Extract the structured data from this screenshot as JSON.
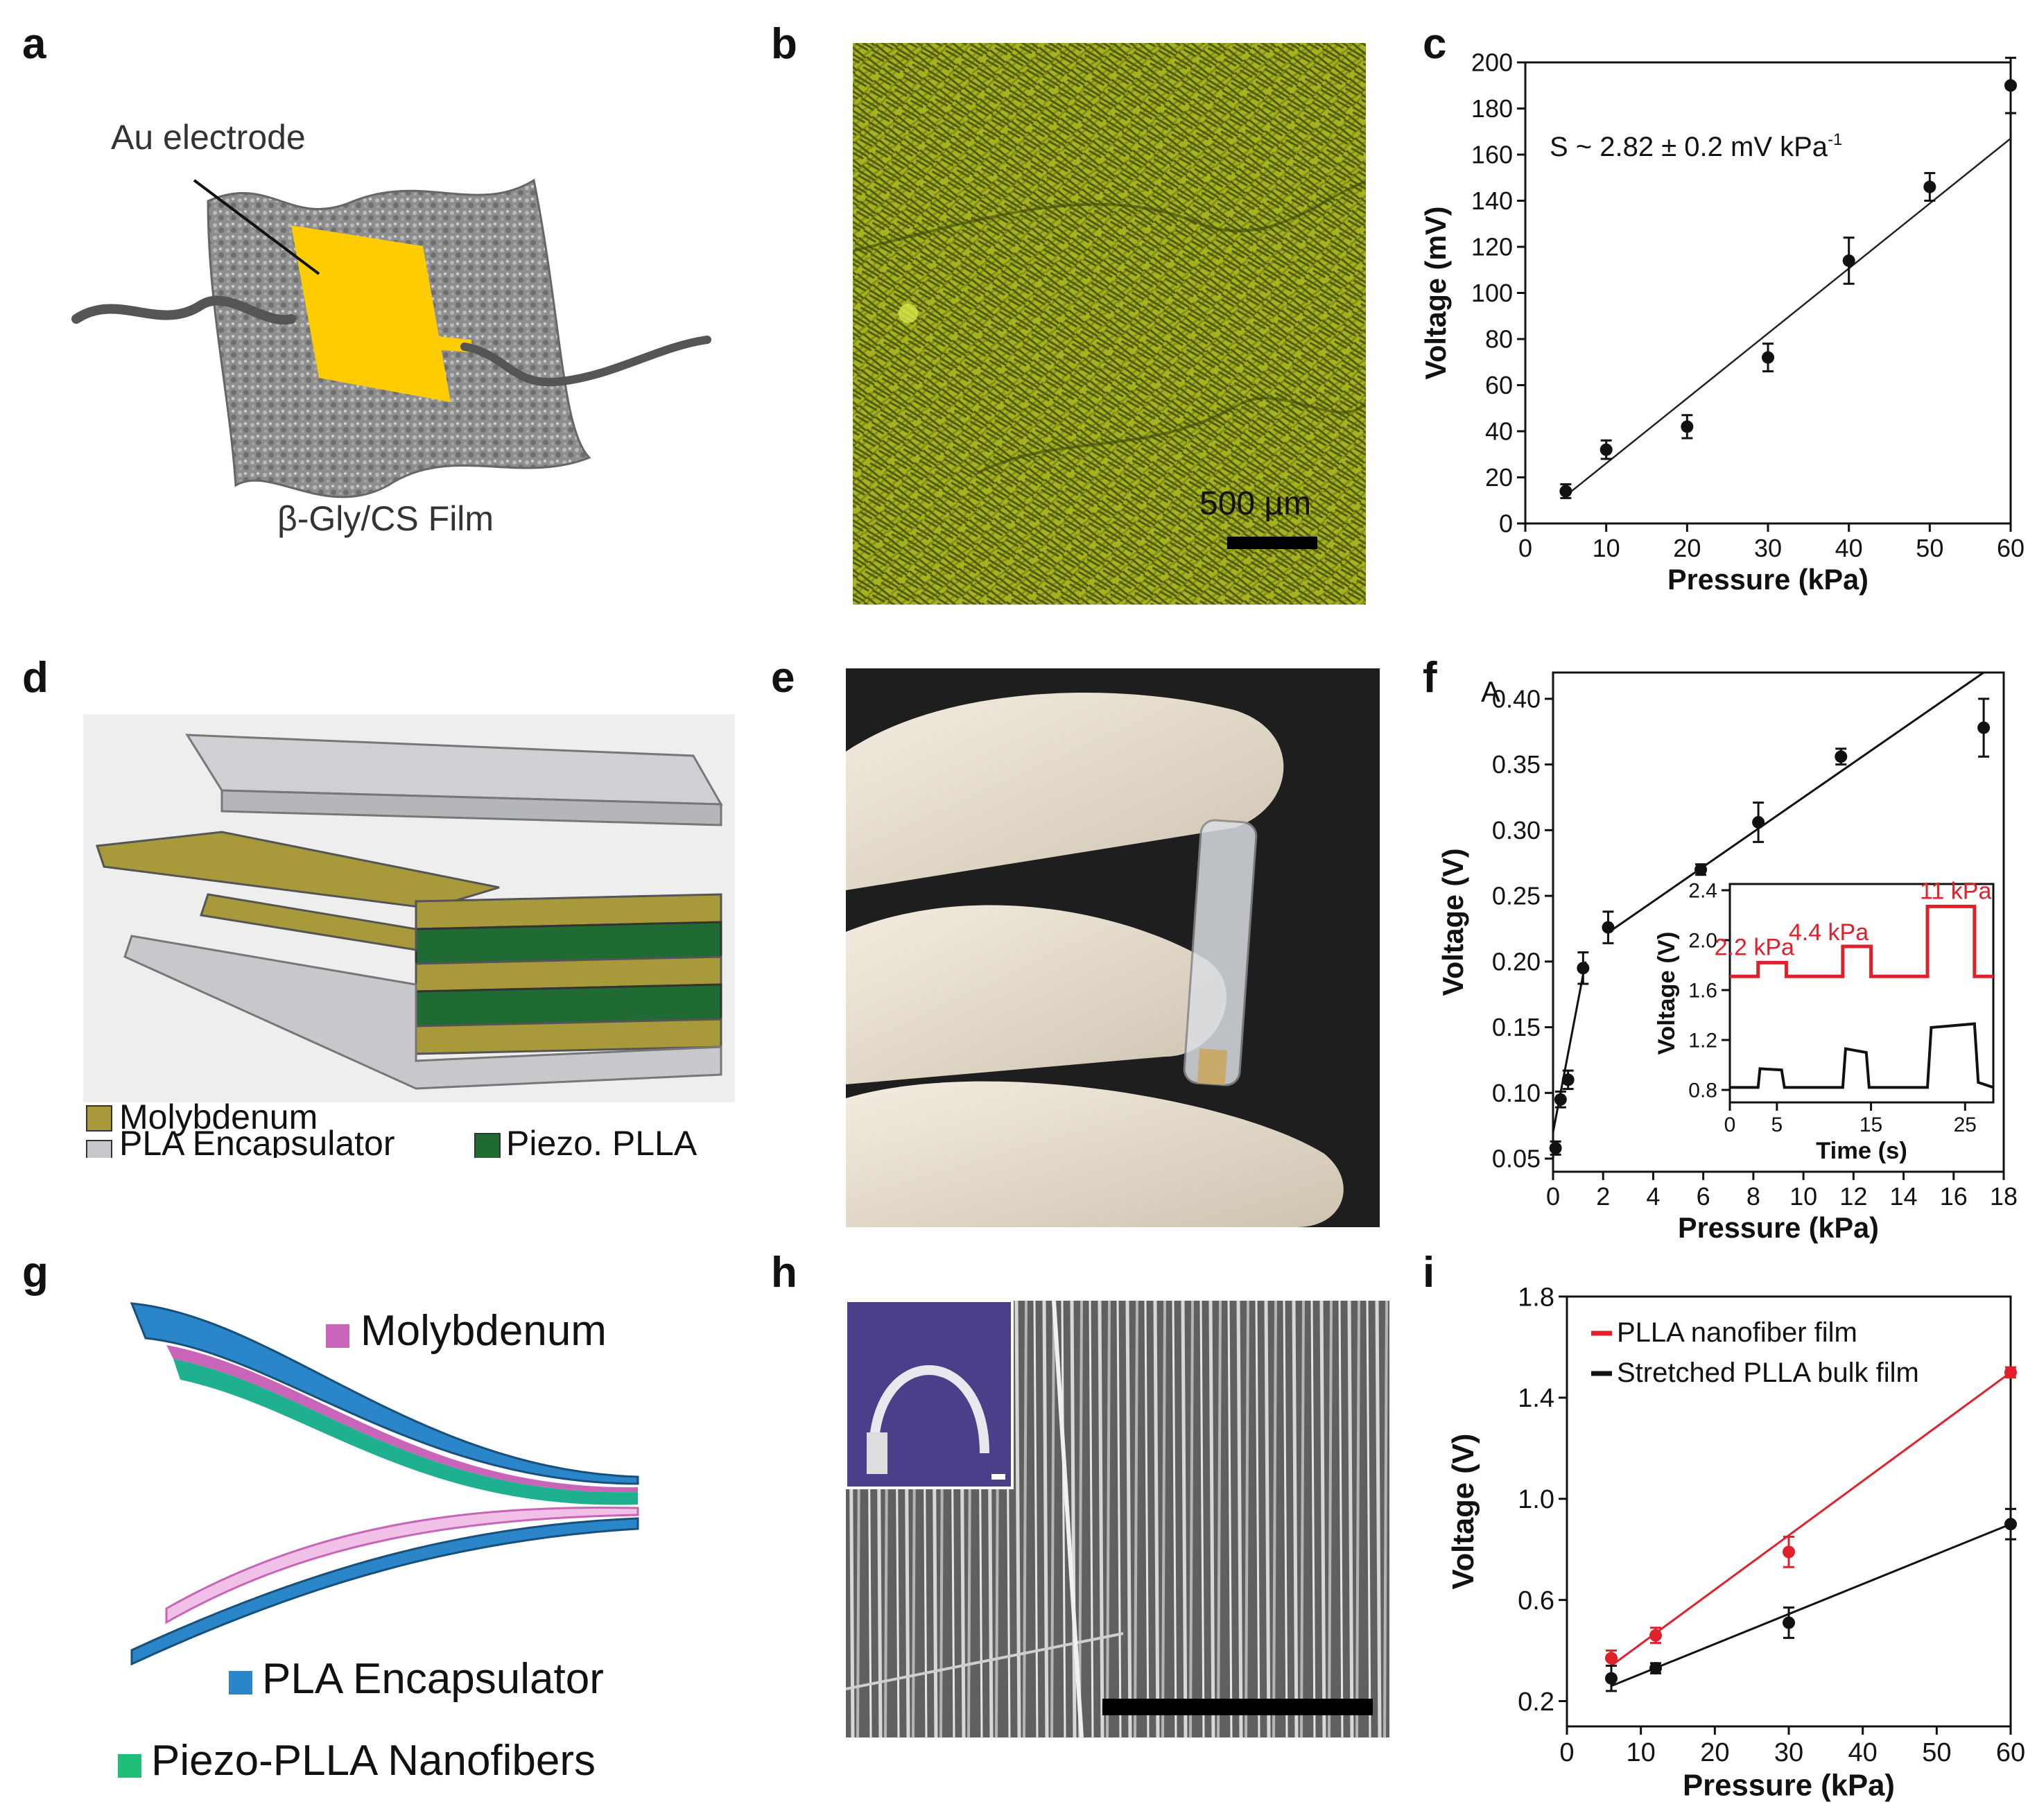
{
  "panel_labels": {
    "a": "a",
    "b": "b",
    "c": "c",
    "d": "d",
    "e": "e",
    "f": "f",
    "g": "g",
    "h": "h",
    "i": "i"
  },
  "panel_a": {
    "electrode_label": "Au electrode",
    "film_label": "β-Gly/CS Film",
    "electrode_color": "#ffcc00"
  },
  "panel_b": {
    "scale_bar": "500 µm",
    "film_color": "#9aa61a"
  },
  "panel_d": {
    "legend": {
      "molybdenum": "Molybdenum",
      "pla": "PLA Encapsulator",
      "piezo": "Piezo. PLLA"
    },
    "colors": {
      "molybdenum": "#a89a3a",
      "pla": "#c8c8cc",
      "piezo": "#1f6b33"
    }
  },
  "panel_g": {
    "legend": {
      "molybdenum": "Molybdenum",
      "pla": "PLA Encapsulator",
      "piezo": "Piezo-PLLA Nanofibers"
    },
    "colors": {
      "molybdenum": "#c865b8",
      "pla": "#2a86c8",
      "piezo": "#1fbf7a"
    }
  },
  "chart_data": [
    {
      "panel": "c",
      "type": "scatter",
      "xlabel": "Pressure (kPa)",
      "ylabel": "Voltage (mV)",
      "annotation": "S ~ 2.82 ± 0.2 mV kPa",
      "annotation_sup": "-1",
      "xlim": [
        0,
        60
      ],
      "ylim": [
        0,
        200
      ],
      "xticks": [
        "0",
        "10",
        "20",
        "30",
        "40",
        "50",
        "60"
      ],
      "yticks": [
        "0",
        "20",
        "40",
        "60",
        "80",
        "100",
        "120",
        "140",
        "160",
        "180",
        "200"
      ],
      "points": [
        {
          "x": 5,
          "y": 14,
          "err": 3
        },
        {
          "x": 10,
          "y": 32,
          "err": 4
        },
        {
          "x": 20,
          "y": 42,
          "err": 5
        },
        {
          "x": 30,
          "y": 72,
          "err": 6
        },
        {
          "x": 40,
          "y": 114,
          "err": 10
        },
        {
          "x": 50,
          "y": 146,
          "err": 6
        },
        {
          "x": 60,
          "y": 190,
          "err": 12
        }
      ],
      "fit": {
        "x": [
          5,
          60
        ],
        "y": [
          12,
          167
        ]
      }
    },
    {
      "panel": "f",
      "type": "scatter",
      "corner_label": "A",
      "xlabel": "Pressure (kPa)",
      "ylabel": "Voltage (V)",
      "xlim": [
        0,
        18
      ],
      "ylim": [
        0.04,
        0.42
      ],
      "xticks": [
        "0",
        "2",
        "4",
        "6",
        "8",
        "10",
        "12",
        "14",
        "16",
        "18"
      ],
      "yticks": [
        "0.05",
        "0.10",
        "0.15",
        "0.20",
        "0.25",
        "0.30",
        "0.35",
        "0.40"
      ],
      "points": [
        {
          "x": 0.1,
          "y": 0.058,
          "err": 0.005
        },
        {
          "x": 0.3,
          "y": 0.095,
          "err": 0.006
        },
        {
          "x": 0.6,
          "y": 0.11,
          "err": 0.007
        },
        {
          "x": 1.2,
          "y": 0.195,
          "err": 0.012
        },
        {
          "x": 2.2,
          "y": 0.226,
          "err": 0.012
        },
        {
          "x": 5.9,
          "y": 0.27,
          "err": 0.004
        },
        {
          "x": 8.2,
          "y": 0.306,
          "err": 0.015
        },
        {
          "x": 11.5,
          "y": 0.356,
          "err": 0.006
        },
        {
          "x": 17.2,
          "y": 0.378,
          "err": 0.022
        }
      ],
      "fit_low": {
        "x": [
          0,
          1.3
        ],
        "y": [
          0.07,
          0.2
        ]
      },
      "fit_high": {
        "x": [
          2.2,
          17.2
        ],
        "y": [
          0.222,
          0.42
        ]
      },
      "inset": {
        "xlabel": "Time (s)",
        "ylabel": "Voltage (V)",
        "xlim": [
          0,
          28
        ],
        "ylim": [
          0.7,
          2.45
        ],
        "xticks": [
          "0",
          "5",
          "15",
          "25"
        ],
        "xtick_values": [
          0,
          5,
          15,
          25
        ],
        "yticks": [
          "0.8",
          "1.2",
          "1.6",
          "2.0",
          "2.4"
        ],
        "pressure_labels": [
          "2.2 kPa",
          "4.4 kPa",
          "11 kPa"
        ],
        "red_color": "#e0202a",
        "stimulus": {
          "x": [
            0,
            3,
            3,
            6,
            6,
            12,
            12,
            15,
            15,
            21,
            21,
            26,
            26,
            28
          ],
          "y": [
            1.71,
            1.71,
            1.82,
            1.82,
            1.71,
            1.71,
            1.95,
            1.95,
            1.71,
            1.71,
            2.27,
            2.27,
            1.71,
            1.71
          ]
        },
        "response": {
          "x": [
            0,
            3,
            3.2,
            5.5,
            5.8,
            12,
            12.3,
            14.5,
            14.8,
            21,
            21.4,
            26,
            26.4,
            28
          ],
          "y": [
            0.82,
            0.82,
            0.97,
            0.96,
            0.82,
            0.82,
            1.13,
            1.1,
            0.82,
            0.82,
            1.3,
            1.33,
            0.86,
            0.82
          ]
        }
      }
    },
    {
      "panel": "i",
      "type": "scatter",
      "xlabel": "Pressure (kPa)",
      "ylabel": "Voltage (V)",
      "xlim": [
        0,
        60
      ],
      "ylim": [
        0.1,
        1.8
      ],
      "xticks": [
        "0",
        "10",
        "20",
        "30",
        "40",
        "50",
        "60"
      ],
      "yticks": [
        "0.2",
        "0.6",
        "1.0",
        "1.4",
        "1.8"
      ],
      "series": [
        {
          "name": "PLLA nanofiber film",
          "color": "#e0202a",
          "points": [
            {
              "x": 6,
              "y": 0.37,
              "err": 0.03
            },
            {
              "x": 12,
              "y": 0.46,
              "err": 0.03
            },
            {
              "x": 30,
              "y": 0.79,
              "err": 0.06
            },
            {
              "x": 60,
              "y": 1.5,
              "err": 0.02
            }
          ],
          "fit": {
            "x": [
              6,
              60
            ],
            "y": [
              0.34,
              1.5
            ]
          }
        },
        {
          "name": "Stretched PLLA bulk film",
          "color": "#111111",
          "points": [
            {
              "x": 6,
              "y": 0.29,
              "err": 0.05
            },
            {
              "x": 12,
              "y": 0.33,
              "err": 0.02
            },
            {
              "x": 30,
              "y": 0.51,
              "err": 0.06
            },
            {
              "x": 60,
              "y": 0.9,
              "err": 0.06
            }
          ],
          "fit": {
            "x": [
              6,
              60
            ],
            "y": [
              0.26,
              0.9
            ]
          }
        }
      ]
    }
  ]
}
